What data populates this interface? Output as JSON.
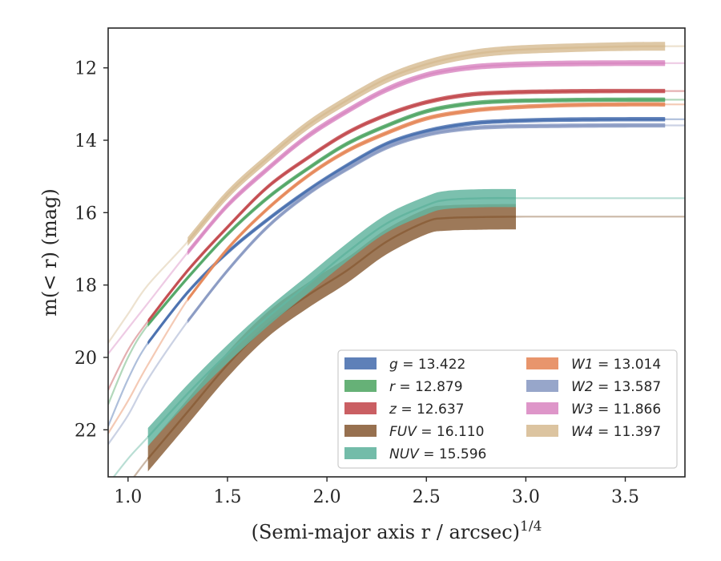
{
  "chart_data": {
    "type": "line",
    "title": "",
    "xlabel": "(Semi-major axis r / arcsec)",
    "xlabel_exponent": "1/4",
    "ylabel": "m(< r) (mag)",
    "xlim": [
      0.9,
      3.8
    ],
    "ylim": [
      23.3,
      10.9
    ],
    "y_inverted": true,
    "x_ticks": [
      1.0,
      1.5,
      2.0,
      2.5,
      3.0,
      3.5
    ],
    "x_tick_labels": [
      "1.0",
      "1.5",
      "2.0",
      "2.5",
      "3.0",
      "3.5"
    ],
    "y_ticks": [
      12,
      14,
      16,
      18,
      20,
      22
    ],
    "y_tick_labels": [
      "12",
      "14",
      "16",
      "18",
      "20",
      "22"
    ],
    "grid": false,
    "legend_position": "bottom-right",
    "legend_columns": 2,
    "series": [
      {
        "name": "g",
        "legend": "13.422",
        "color": "#4c72b0",
        "start_x": 1.1,
        "bold_end_x": 3.7,
        "x": [
          0.9,
          1.0,
          1.1,
          1.3,
          1.5,
          1.7,
          1.9,
          2.1,
          2.3,
          2.5,
          2.7,
          2.9,
          3.2,
          3.5,
          3.8
        ],
        "y": [
          21.9,
          20.6,
          19.6,
          18.2,
          17.1,
          16.2,
          15.4,
          14.7,
          14.1,
          13.75,
          13.55,
          13.47,
          13.43,
          13.42,
          13.42
        ],
        "band": 0.06
      },
      {
        "name": "r",
        "legend": "12.879",
        "color": "#55a868",
        "start_x": 1.1,
        "bold_end_x": 3.7,
        "x": [
          0.9,
          1.0,
          1.1,
          1.3,
          1.5,
          1.7,
          1.9,
          2.1,
          2.3,
          2.5,
          2.7,
          2.9,
          3.2,
          3.5,
          3.8
        ],
        "y": [
          21.3,
          20.0,
          19.1,
          17.8,
          16.6,
          15.6,
          14.8,
          14.1,
          13.6,
          13.2,
          13.0,
          12.92,
          12.89,
          12.88,
          12.88
        ],
        "band": 0.06
      },
      {
        "name": "z",
        "legend": "12.637",
        "color": "#c44e52",
        "start_x": 1.1,
        "bold_end_x": 3.7,
        "x": [
          0.9,
          1.0,
          1.1,
          1.3,
          1.5,
          1.7,
          1.9,
          2.1,
          2.3,
          2.5,
          2.7,
          2.9,
          3.2,
          3.5,
          3.8
        ],
        "y": [
          20.9,
          19.8,
          19.0,
          17.6,
          16.4,
          15.3,
          14.5,
          13.8,
          13.3,
          12.95,
          12.75,
          12.68,
          12.65,
          12.64,
          12.64
        ],
        "band": 0.06
      },
      {
        "name": "FUV",
        "legend": "16.110",
        "color": "#8c613c",
        "start_x": 1.1,
        "bold_end_x": 2.95,
        "x": [
          0.9,
          1.0,
          1.1,
          1.3,
          1.5,
          1.7,
          1.9,
          2.1,
          2.3,
          2.5,
          2.6,
          2.8,
          3.0,
          3.3,
          3.8
        ],
        "y": [
          24.0,
          23.5,
          22.8,
          21.5,
          20.2,
          19.1,
          18.3,
          17.6,
          16.8,
          16.25,
          16.15,
          16.12,
          16.11,
          16.11,
          16.11
        ],
        "band": 0.35
      },
      {
        "name": "NUV",
        "legend": "15.596",
        "color": "#64b5a0",
        "start_x": 1.1,
        "bold_end_x": 2.95,
        "x": [
          0.9,
          1.0,
          1.1,
          1.3,
          1.5,
          1.7,
          1.9,
          2.1,
          2.3,
          2.5,
          2.6,
          2.8,
          3.0,
          3.3,
          3.8
        ],
        "y": [
          23.5,
          22.8,
          22.2,
          21.0,
          19.9,
          18.9,
          18.0,
          17.1,
          16.3,
          15.8,
          15.65,
          15.6,
          15.6,
          15.6,
          15.6
        ],
        "band": 0.25
      },
      {
        "name": "W1",
        "legend": "13.014",
        "color": "#e68a5c",
        "start_x": 1.3,
        "bold_end_x": 3.7,
        "x": [
          0.9,
          1.0,
          1.1,
          1.3,
          1.5,
          1.7,
          1.9,
          2.1,
          2.3,
          2.5,
          2.7,
          2.9,
          3.2,
          3.5,
          3.8
        ],
        "y": [
          22.1,
          21.2,
          20.2,
          18.4,
          17.0,
          15.9,
          15.0,
          14.3,
          13.8,
          13.4,
          13.2,
          13.1,
          13.03,
          13.01,
          13.01
        ],
        "band": 0.06
      },
      {
        "name": "W2",
        "legend": "13.587",
        "color": "#8c9cc4",
        "start_x": 1.3,
        "bold_end_x": 3.7,
        "x": [
          0.9,
          1.0,
          1.1,
          1.3,
          1.5,
          1.7,
          1.9,
          2.1,
          2.3,
          2.5,
          2.7,
          2.9,
          3.2,
          3.5,
          3.8
        ],
        "y": [
          22.4,
          21.6,
          20.6,
          19.0,
          17.6,
          16.4,
          15.5,
          14.8,
          14.2,
          13.85,
          13.68,
          13.62,
          13.6,
          13.59,
          13.59
        ],
        "band": 0.06
      },
      {
        "name": "W3",
        "legend": "11.866",
        "color": "#da8bc3",
        "start_x": 1.3,
        "bold_end_x": 3.7,
        "x": [
          0.9,
          1.0,
          1.1,
          1.3,
          1.5,
          1.7,
          1.9,
          2.1,
          2.3,
          2.5,
          2.7,
          2.9,
          3.2,
          3.5,
          3.8
        ],
        "y": [
          19.9,
          19.2,
          18.5,
          17.1,
          15.8,
          14.8,
          13.9,
          13.2,
          12.6,
          12.2,
          12.0,
          11.92,
          11.88,
          11.87,
          11.87
        ],
        "band": 0.08
      },
      {
        "name": "W4",
        "legend": "11.397",
        "color": "#d8be96",
        "start_x": 1.3,
        "bold_end_x": 3.7,
        "x": [
          0.9,
          1.0,
          1.1,
          1.3,
          1.5,
          1.7,
          1.9,
          2.1,
          2.3,
          2.5,
          2.7,
          2.9,
          3.2,
          3.5,
          3.8
        ],
        "y": [
          19.6,
          18.8,
          18.0,
          16.8,
          15.5,
          14.5,
          13.6,
          12.9,
          12.3,
          11.9,
          11.65,
          11.52,
          11.45,
          11.41,
          11.4
        ],
        "band": 0.12
      }
    ]
  }
}
